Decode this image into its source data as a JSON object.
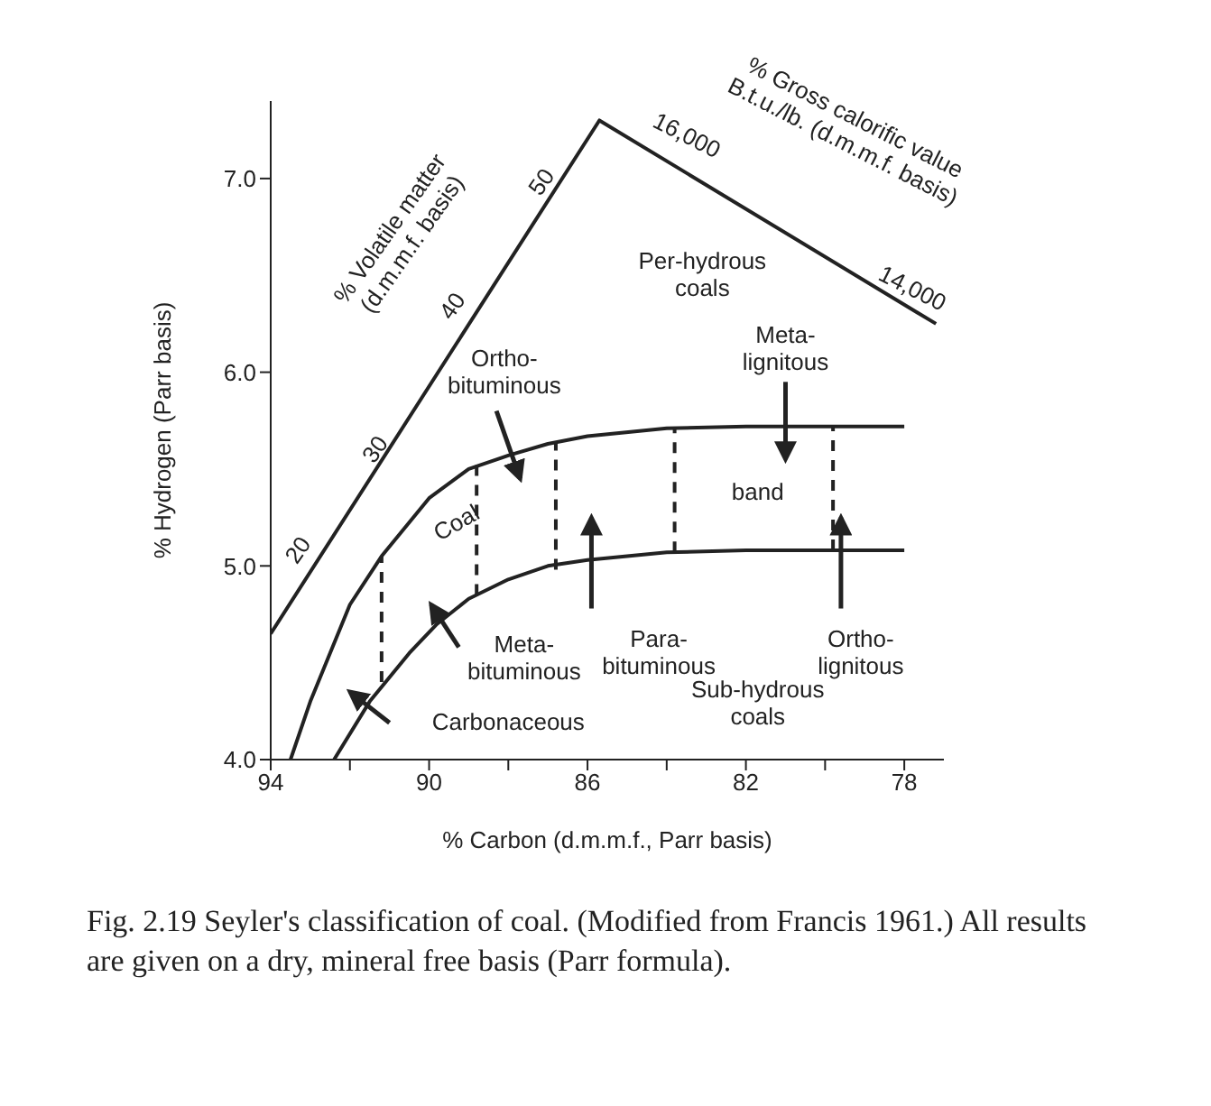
{
  "chart_data": {
    "type": "line",
    "xlabel": "% Carbon (d.m.m.f., Parr basis)",
    "ylabel": "% Hydrogen (Parr basis)",
    "xlim": [
      94,
      77
    ],
    "xticks": [
      94,
      {
        "value": 92,
        "label": null
      },
      90,
      {
        "value": 88,
        "label": null
      },
      86,
      {
        "value": 84,
        "label": null
      },
      82,
      {
        "value": 80,
        "label": null
      },
      78
    ],
    "ylim": [
      4,
      7.4
    ],
    "yticks": [
      {
        "value": 4,
        "label": "4.0"
      },
      {
        "value": 5,
        "label": "5.0"
      },
      {
        "value": 6,
        "label": "6.0"
      },
      {
        "value": 7,
        "label": "7.0"
      }
    ],
    "marker": "none",
    "line_style": "solid",
    "series": [
      {
        "color": "#222222",
        "x": [
          94,
          85.7,
          77.2
        ],
        "values": [
          4.65,
          7.3,
          6.25
        ]
      },
      {
        "color": "#222222",
        "x": [
          93.5,
          93,
          92,
          91.2,
          90,
          89,
          88,
          87,
          86,
          84,
          82,
          78
        ],
        "values": [
          4.0,
          4.3,
          4.8,
          5.05,
          5.35,
          5.5,
          5.57,
          5.63,
          5.67,
          5.71,
          5.72,
          5.72
        ]
      },
      {
        "color": "#222222",
        "x": [
          92.4,
          91.5,
          90.5,
          89.8,
          89,
          88,
          87,
          86,
          84,
          82,
          78
        ],
        "values": [
          4.0,
          4.3,
          4.55,
          4.7,
          4.83,
          4.93,
          5.0,
          5.03,
          5.07,
          5.08,
          5.08
        ]
      },
      {
        "color": "#222222",
        "line_style": "dashed",
        "x": [
          91.2,
          91.2
        ],
        "values": [
          4.4,
          5.05
        ]
      },
      {
        "color": "#222222",
        "line_style": "dashed",
        "x": [
          88.8,
          88.8
        ],
        "values": [
          4.85,
          5.52
        ]
      },
      {
        "color": "#222222",
        "line_style": "dashed",
        "x": [
          86.8,
          86.8
        ],
        "values": [
          4.98,
          5.64
        ]
      },
      {
        "color": "#222222",
        "line_style": "dashed",
        "x": [
          83.8,
          83.8
        ],
        "values": [
          5.07,
          5.71
        ]
      },
      {
        "color": "#222222",
        "line_style": "dashed",
        "x": [
          79.8,
          79.8
        ],
        "values": [
          5.08,
          5.72
        ]
      }
    ],
    "annotations": [
      "20",
      "30",
      "40",
      "50",
      "% Volatile matter\n(d.m.m.f. basis)",
      "16,000",
      "14,000",
      "% Gross calorific value\nB.t.u./lb. (d.m.m.f. basis)",
      "Per-hydrous\ncoals",
      "Ortho-\nbituminous",
      "Meta-\nlignitous",
      "band",
      "Coal",
      "Para-\nbituminous",
      "Ortho-\nlignitous",
      "Meta-\nbituminous",
      "Carbonaceous",
      "Sub-hydrous\ncoals",
      "Fig. 2.19 Seyler's classification of coal. (Modified from Francis 1961.) All results are given on a dry, mineral free basis (Parr formula)."
    ]
  }
}
